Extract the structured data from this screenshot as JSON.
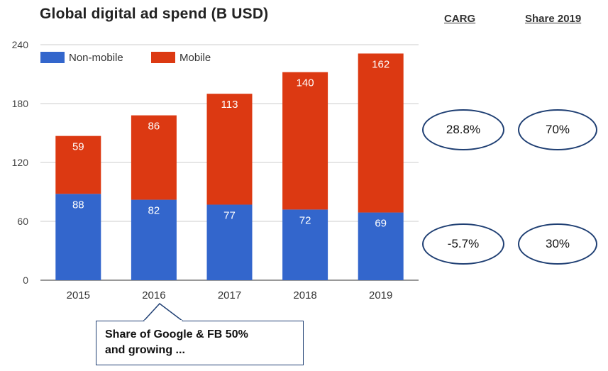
{
  "chart_data": {
    "type": "bar",
    "stacked": true,
    "title": "Global digital ad spend (B USD)",
    "categories": [
      "2015",
      "2016",
      "2017",
      "2018",
      "2019"
    ],
    "series": [
      {
        "name": "Non-mobile",
        "values": [
          88,
          82,
          77,
          72,
          69
        ],
        "color": "#3366cc"
      },
      {
        "name": "Mobile",
        "values": [
          59,
          86,
          113,
          140,
          162
        ],
        "color": "#dc3912"
      }
    ],
    "ylim": [
      0,
      240
    ],
    "yticks": [
      "0",
      "60",
      "120",
      "180",
      "240"
    ],
    "grid": true,
    "legend": "top-left"
  },
  "side_table": {
    "header_carg": "CARG",
    "header_share": "Share 2019",
    "mobile_carg": "28.8%",
    "mobile_share": "70%",
    "nonmobile_carg": "-5.7%",
    "nonmobile_share": "30%"
  },
  "callout": {
    "line1": "Share of Google & FB 50%",
    "line2": "and growing ..."
  }
}
